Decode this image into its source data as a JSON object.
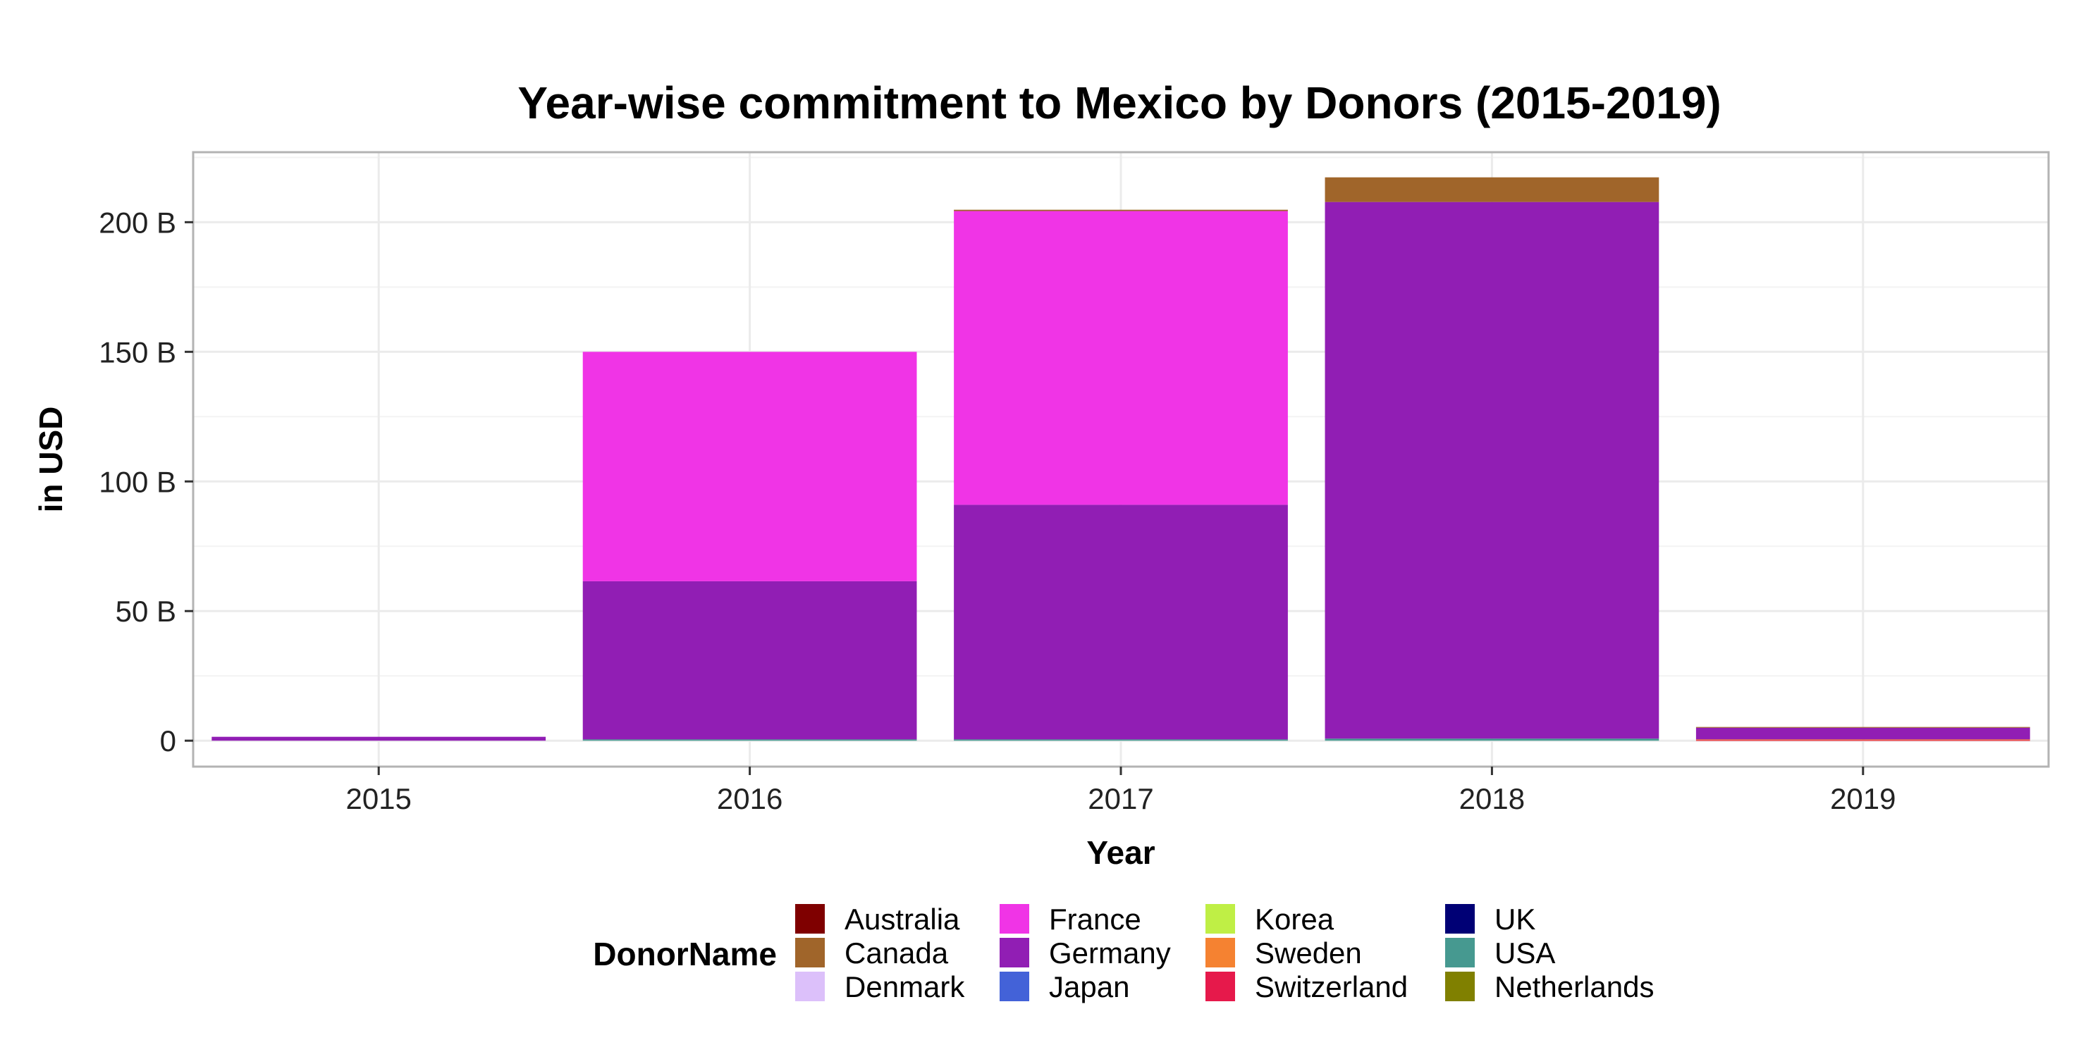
{
  "chart_data": {
    "type": "bar",
    "stacked": true,
    "title": "Year-wise commitment to Mexico by Donors (2015-2019)",
    "xlabel": "Year",
    "ylabel": "in USD",
    "categories": [
      "2015",
      "2016",
      "2017",
      "2018",
      "2019"
    ],
    "ylim": [
      -10,
      227
    ],
    "yticks": [
      0,
      50,
      100,
      150,
      200
    ],
    "ytick_labels": [
      "0",
      "50 B",
      "100 B",
      "150 B",
      "200 B"
    ],
    "grid": true,
    "legend_title": "DonorName",
    "legend_position": "bottom",
    "series": [
      {
        "name": "Australia",
        "color": "#7f0000",
        "values": [
          0,
          0,
          0,
          0,
          0
        ]
      },
      {
        "name": "Canada",
        "color": "#a0652a",
        "values": [
          0,
          0,
          0.5,
          9.5,
          0.3
        ]
      },
      {
        "name": "Denmark",
        "color": "#dcc0fa",
        "values": [
          0,
          0,
          0,
          0,
          0
        ]
      },
      {
        "name": "France",
        "color": "#f034e6",
        "values": [
          0,
          88.5,
          113.3,
          0,
          0
        ]
      },
      {
        "name": "Germany",
        "color": "#911eb4",
        "values": [
          1.5,
          61,
          90.5,
          207,
          4.5
        ]
      },
      {
        "name": "Japan",
        "color": "#4362d8",
        "values": [
          0,
          0,
          0,
          0,
          0
        ]
      },
      {
        "name": "Korea",
        "color": "#bfef45",
        "values": [
          0,
          0,
          0,
          0,
          0
        ]
      },
      {
        "name": "Sweden",
        "color": "#f58231",
        "values": [
          0,
          0,
          0,
          0,
          0.3
        ]
      },
      {
        "name": "Switzerland",
        "color": "#e6194b",
        "values": [
          0,
          0,
          0,
          0,
          0.2
        ]
      },
      {
        "name": "UK",
        "color": "#000075",
        "values": [
          0,
          0,
          0,
          0,
          0
        ]
      },
      {
        "name": "USA",
        "color": "#469990",
        "values": [
          0,
          0.5,
          0.5,
          0.8,
          0
        ]
      },
      {
        "name": "Netherlands",
        "color": "#808000",
        "values": [
          0,
          0,
          0,
          0,
          0
        ]
      }
    ]
  }
}
